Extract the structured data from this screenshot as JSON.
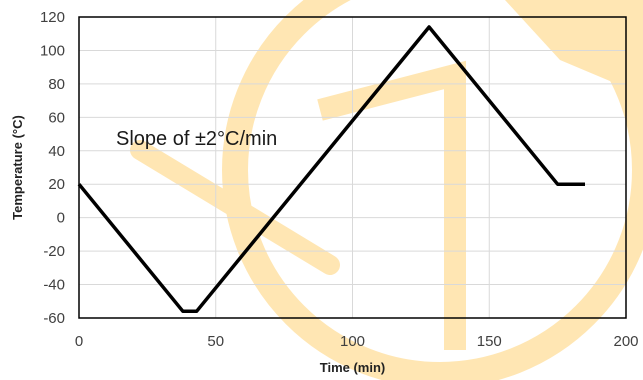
{
  "chart_data": {
    "type": "line",
    "title": "",
    "xlabel": "Time (min)",
    "ylabel": "Temperature (°C)",
    "xlim": [
      0,
      200
    ],
    "ylim": [
      -60,
      120
    ],
    "xticks": [
      0,
      50,
      100,
      150,
      200
    ],
    "yticks": [
      -60,
      -40,
      -20,
      0,
      20,
      40,
      60,
      80,
      100,
      120
    ],
    "grid": true,
    "legend": "none",
    "annotations": [
      {
        "text": "Slope of ±2°C/min"
      }
    ],
    "series": [
      {
        "x": [
          0,
          38,
          43,
          128,
          175,
          185
        ],
        "y": [
          20,
          -56,
          -56,
          114,
          20,
          20
        ]
      }
    ],
    "colors": {
      "line": "#000000",
      "grid": "#d9d9d9",
      "frame": "#000000",
      "watermark": "#ffe2a6"
    }
  }
}
